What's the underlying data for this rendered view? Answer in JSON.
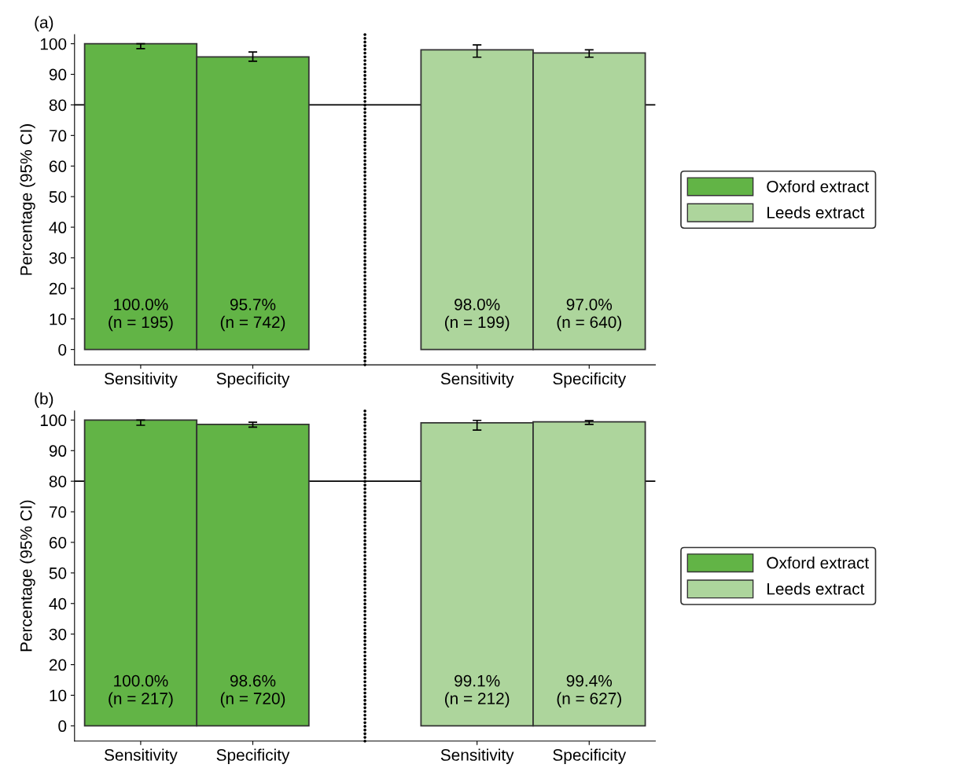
{
  "chart_data": [
    {
      "type": "bar",
      "title": "(a)",
      "ylabel": "Percentage (95% CI)",
      "categories": [
        "Sensitivity",
        "Specificity",
        null,
        "Sensitivity",
        "Specificity"
      ],
      "ylim": [
        -5,
        103
      ],
      "yticks": [
        0,
        10,
        20,
        30,
        40,
        50,
        60,
        70,
        80,
        90,
        100
      ],
      "legend": "right",
      "grid": false,
      "series": [
        {
          "name": "Oxford extract",
          "color": "#62b446",
          "values": [
            100.0,
            95.7,
            null,
            null,
            null
          ],
          "errors": [
            [
              98.4,
              100
            ],
            [
              94.3,
              97.3
            ],
            null,
            null,
            null
          ],
          "value_labels": [
            "100.0%\n(n = 195)",
            "95.7%\n(n = 742)",
            null,
            null,
            null
          ]
        },
        {
          "name": "Leeds extract",
          "color": "#add59c",
          "values": [
            null,
            null,
            null,
            98.0,
            97.0
          ],
          "errors": [
            null,
            null,
            null,
            [
              95.6,
              99.6
            ],
            [
              95.6,
              98.0
            ]
          ],
          "value_labels": [
            null,
            null,
            null,
            "98.0%\n(n = 199)",
            "97.0%\n(n = 640)"
          ]
        }
      ],
      "ref_lines": [
        {
          "axis": "y",
          "value": 80,
          "color": "#000000",
          "line_style": "solid"
        }
      ]
    },
    {
      "type": "bar",
      "title": "(b)",
      "ylabel": "Percentage (95% CI)",
      "categories": [
        "Sensitivity",
        "Specificity",
        null,
        "Sensitivity",
        "Specificity"
      ],
      "ylim": [
        -5,
        103
      ],
      "yticks": [
        0,
        10,
        20,
        30,
        40,
        50,
        60,
        70,
        80,
        90,
        100
      ],
      "legend": "right",
      "grid": false,
      "series": [
        {
          "name": "Oxford extract",
          "color": "#62b446",
          "values": [
            100.0,
            98.6,
            null,
            null,
            null
          ],
          "errors": [
            [
              98.3,
              100
            ],
            [
              97.7,
              99.3
            ],
            null,
            null,
            null
          ],
          "value_labels": [
            "100.0%\n(n = 217)",
            "98.6%\n(n = 720)",
            null,
            null,
            null
          ]
        },
        {
          "name": "Leeds extract",
          "color": "#add59c",
          "values": [
            null,
            null,
            null,
            99.1,
            99.4
          ],
          "errors": [
            null,
            null,
            null,
            [
              96.7,
              99.9
            ],
            [
              98.6,
              99.8
            ]
          ],
          "value_labels": [
            null,
            null,
            null,
            "99.1%\n(n = 212)",
            "99.4%\n(n = 627)"
          ]
        }
      ],
      "ref_lines": [
        {
          "axis": "y",
          "value": 80,
          "color": "#000000",
          "line_style": "solid"
        }
      ]
    }
  ]
}
